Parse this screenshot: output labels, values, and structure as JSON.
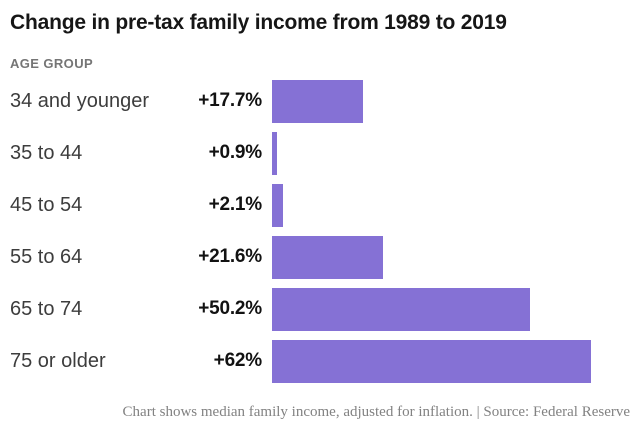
{
  "title": "Change in pre-tax family income from 1989 to 2019",
  "column_header": "AGE GROUP",
  "footer": {
    "text": "Chart shows median family income, adjusted for inflation. | Source: Federal Reserve"
  },
  "colors": {
    "bar": "#8571d5",
    "title": "#161616",
    "label": "#3d3d3d",
    "value": "#121212",
    "column_header": "#757575",
    "footer": "#828282",
    "background": "#ffffff"
  },
  "chart_data": {
    "type": "bar",
    "orientation": "horizontal",
    "title": "Change in pre-tax family income from 1989 to 2019",
    "ylabel": "AGE GROUP",
    "xlabel": "",
    "categories": [
      "34 and younger",
      "35 to 44",
      "45 to 54",
      "55 to 64",
      "65 to 74",
      "75 or older"
    ],
    "values": [
      17.7,
      0.9,
      2.1,
      21.6,
      50.2,
      62
    ],
    "value_labels": [
      "+17.7%",
      "+0.9%",
      "+2.1%",
      "+21.6%",
      "+50.2%",
      "+62%"
    ],
    "xlim": [
      0,
      62
    ],
    "grid": false,
    "legend": null,
    "note": "Chart shows median family income, adjusted for inflation.",
    "source": "Source: Federal Reserve"
  }
}
